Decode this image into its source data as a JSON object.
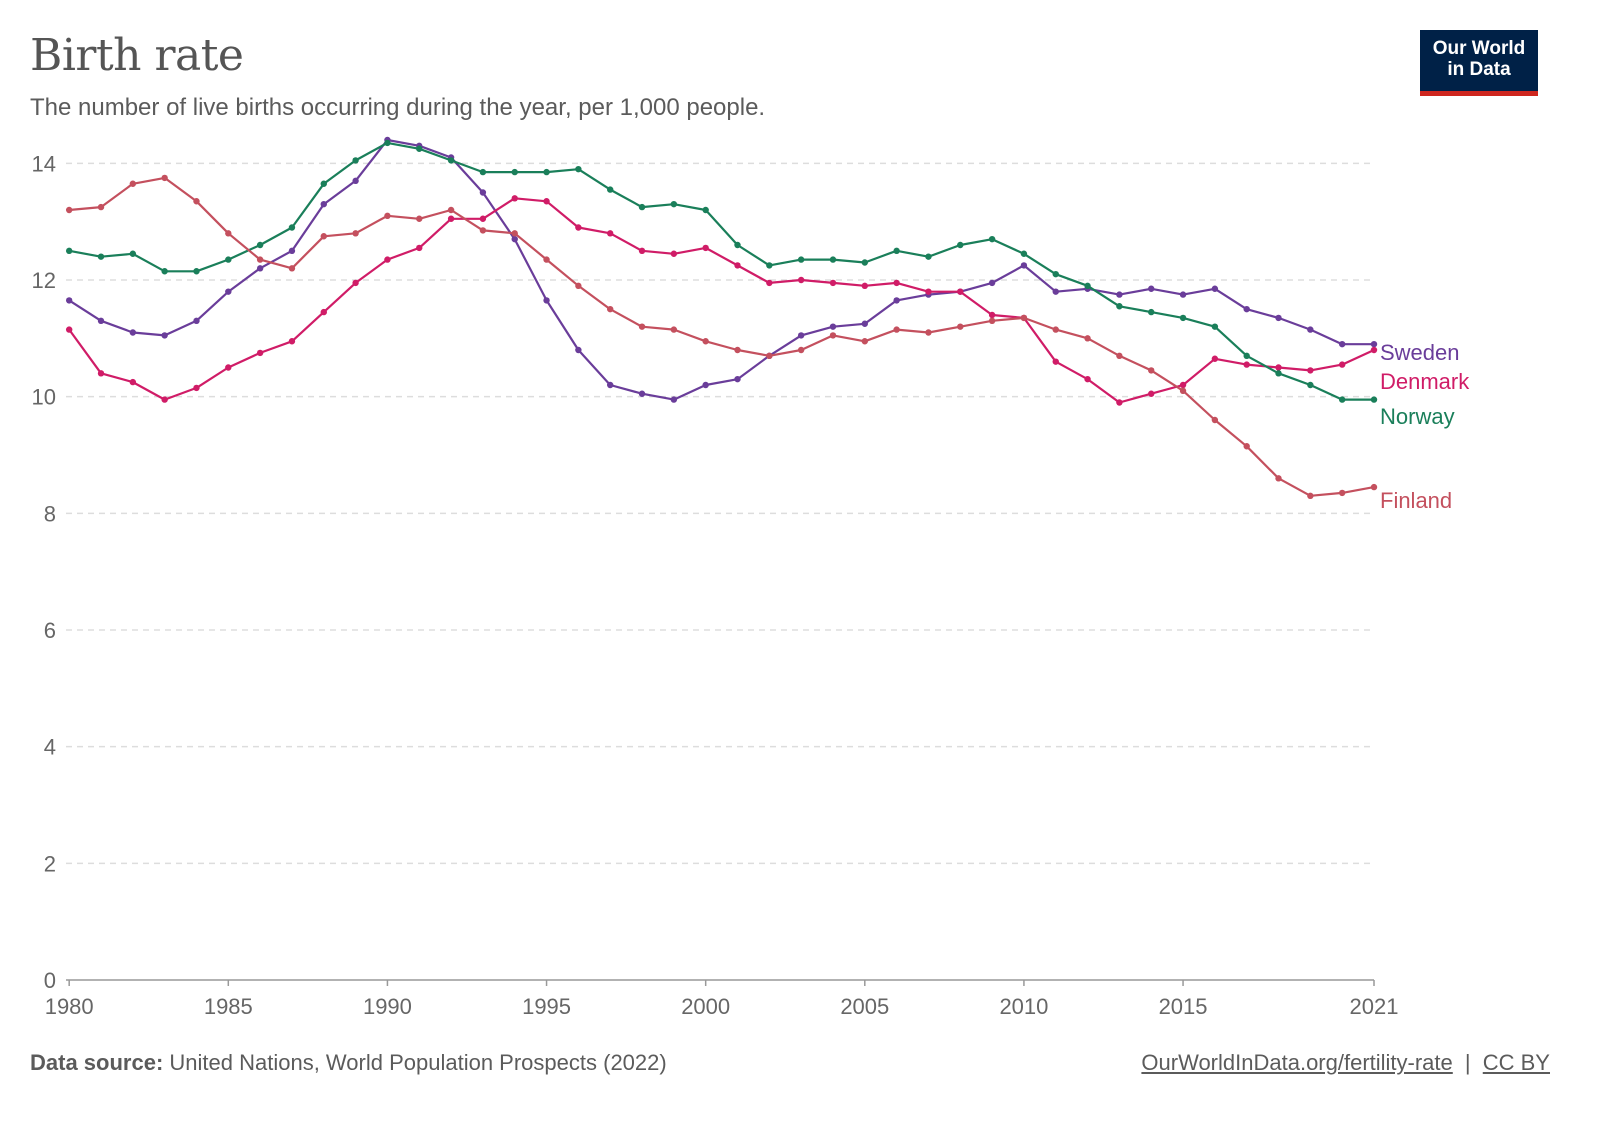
{
  "header": {
    "title": "Birth rate",
    "subtitle": "The number of live births occurring during the year, per 1,000 people."
  },
  "logo": {
    "line1": "Our World",
    "line2": "in Data"
  },
  "footer": {
    "source_label": "Data source:",
    "source_text": "United Nations, World Population Prospects (2022)",
    "url_text": "OurWorldInData.org/fertility-rate",
    "separator": "|",
    "license_text": "CC BY"
  },
  "colors": {
    "Sweden": "#6a3d9a",
    "Denmark": "#d01c67",
    "Norway": "#1a7f5a",
    "Finland": "#c4505e",
    "grid": "#dddddd",
    "axis": "#666666"
  },
  "chart_data": {
    "type": "line",
    "title": "Birth rate",
    "xlabel": "",
    "ylabel": "",
    "xlim": [
      1979.9,
      2021
    ],
    "ylim": [
      0,
      14.4
    ],
    "grid": true,
    "legend": "right-end labels",
    "x_ticks": [
      1980,
      1985,
      1990,
      1995,
      2000,
      2005,
      2010,
      2015,
      2021
    ],
    "x_tick_labels": [
      "1980",
      "1985",
      "1990",
      "1995",
      "2000",
      "2005",
      "2010",
      "2015",
      "2021"
    ],
    "y_ticks": [
      0,
      2,
      4,
      6,
      8,
      10,
      12,
      14
    ],
    "y_tick_labels": [
      "0",
      "2",
      "4",
      "6",
      "8",
      "10",
      "12",
      "14"
    ],
    "x": [
      1980,
      1981,
      1982,
      1983,
      1984,
      1985,
      1986,
      1987,
      1988,
      1989,
      1990,
      1991,
      1992,
      1993,
      1994,
      1995,
      1996,
      1997,
      1998,
      1999,
      2000,
      2001,
      2002,
      2003,
      2004,
      2005,
      2006,
      2007,
      2008,
      2009,
      2010,
      2011,
      2012,
      2013,
      2014,
      2015,
      2016,
      2017,
      2018,
      2019,
      2020,
      2021
    ],
    "series": [
      {
        "name": "Sweden",
        "values": [
          11.65,
          11.3,
          11.1,
          11.05,
          11.3,
          11.8,
          12.2,
          12.5,
          13.3,
          13.7,
          14.4,
          14.3,
          14.1,
          13.5,
          12.7,
          11.65,
          10.8,
          10.2,
          10.05,
          9.95,
          10.2,
          10.3,
          10.7,
          11.05,
          11.2,
          11.25,
          11.65,
          11.75,
          11.8,
          11.95,
          12.25,
          11.8,
          11.85,
          11.75,
          11.85,
          11.75,
          11.85,
          11.5,
          11.35,
          11.15,
          10.9,
          10.9
        ]
      },
      {
        "name": "Denmark",
        "values": [
          11.15,
          10.4,
          10.25,
          9.95,
          10.15,
          10.5,
          10.75,
          10.95,
          11.45,
          11.95,
          12.35,
          12.55,
          13.05,
          13.05,
          13.4,
          13.35,
          12.9,
          12.8,
          12.5,
          12.45,
          12.55,
          12.25,
          11.95,
          12.0,
          11.95,
          11.9,
          11.95,
          11.8,
          11.8,
          11.4,
          11.35,
          10.6,
          10.3,
          9.9,
          10.05,
          10.2,
          10.65,
          10.55,
          10.5,
          10.45,
          10.55,
          10.8
        ]
      },
      {
        "name": "Norway",
        "values": [
          12.5,
          12.4,
          12.45,
          12.15,
          12.15,
          12.35,
          12.6,
          12.9,
          13.65,
          14.05,
          14.35,
          14.25,
          14.05,
          13.85,
          13.85,
          13.85,
          13.9,
          13.55,
          13.25,
          13.3,
          13.2,
          12.6,
          12.25,
          12.35,
          12.35,
          12.3,
          12.5,
          12.4,
          12.6,
          12.7,
          12.45,
          12.1,
          11.9,
          11.55,
          11.45,
          11.35,
          11.2,
          10.7,
          10.4,
          10.2,
          9.95,
          9.95
        ]
      },
      {
        "name": "Finland",
        "values": [
          13.2,
          13.25,
          13.65,
          13.75,
          13.35,
          12.8,
          12.35,
          12.2,
          12.75,
          12.8,
          13.1,
          13.05,
          13.2,
          12.85,
          12.8,
          12.35,
          11.9,
          11.5,
          11.2,
          11.15,
          10.95,
          10.8,
          10.7,
          10.8,
          11.05,
          10.95,
          11.15,
          11.1,
          11.2,
          11.3,
          11.35,
          11.15,
          11.0,
          10.7,
          10.45,
          10.1,
          9.6,
          9.15,
          8.6,
          8.3,
          8.35,
          8.45
        ]
      }
    ]
  }
}
